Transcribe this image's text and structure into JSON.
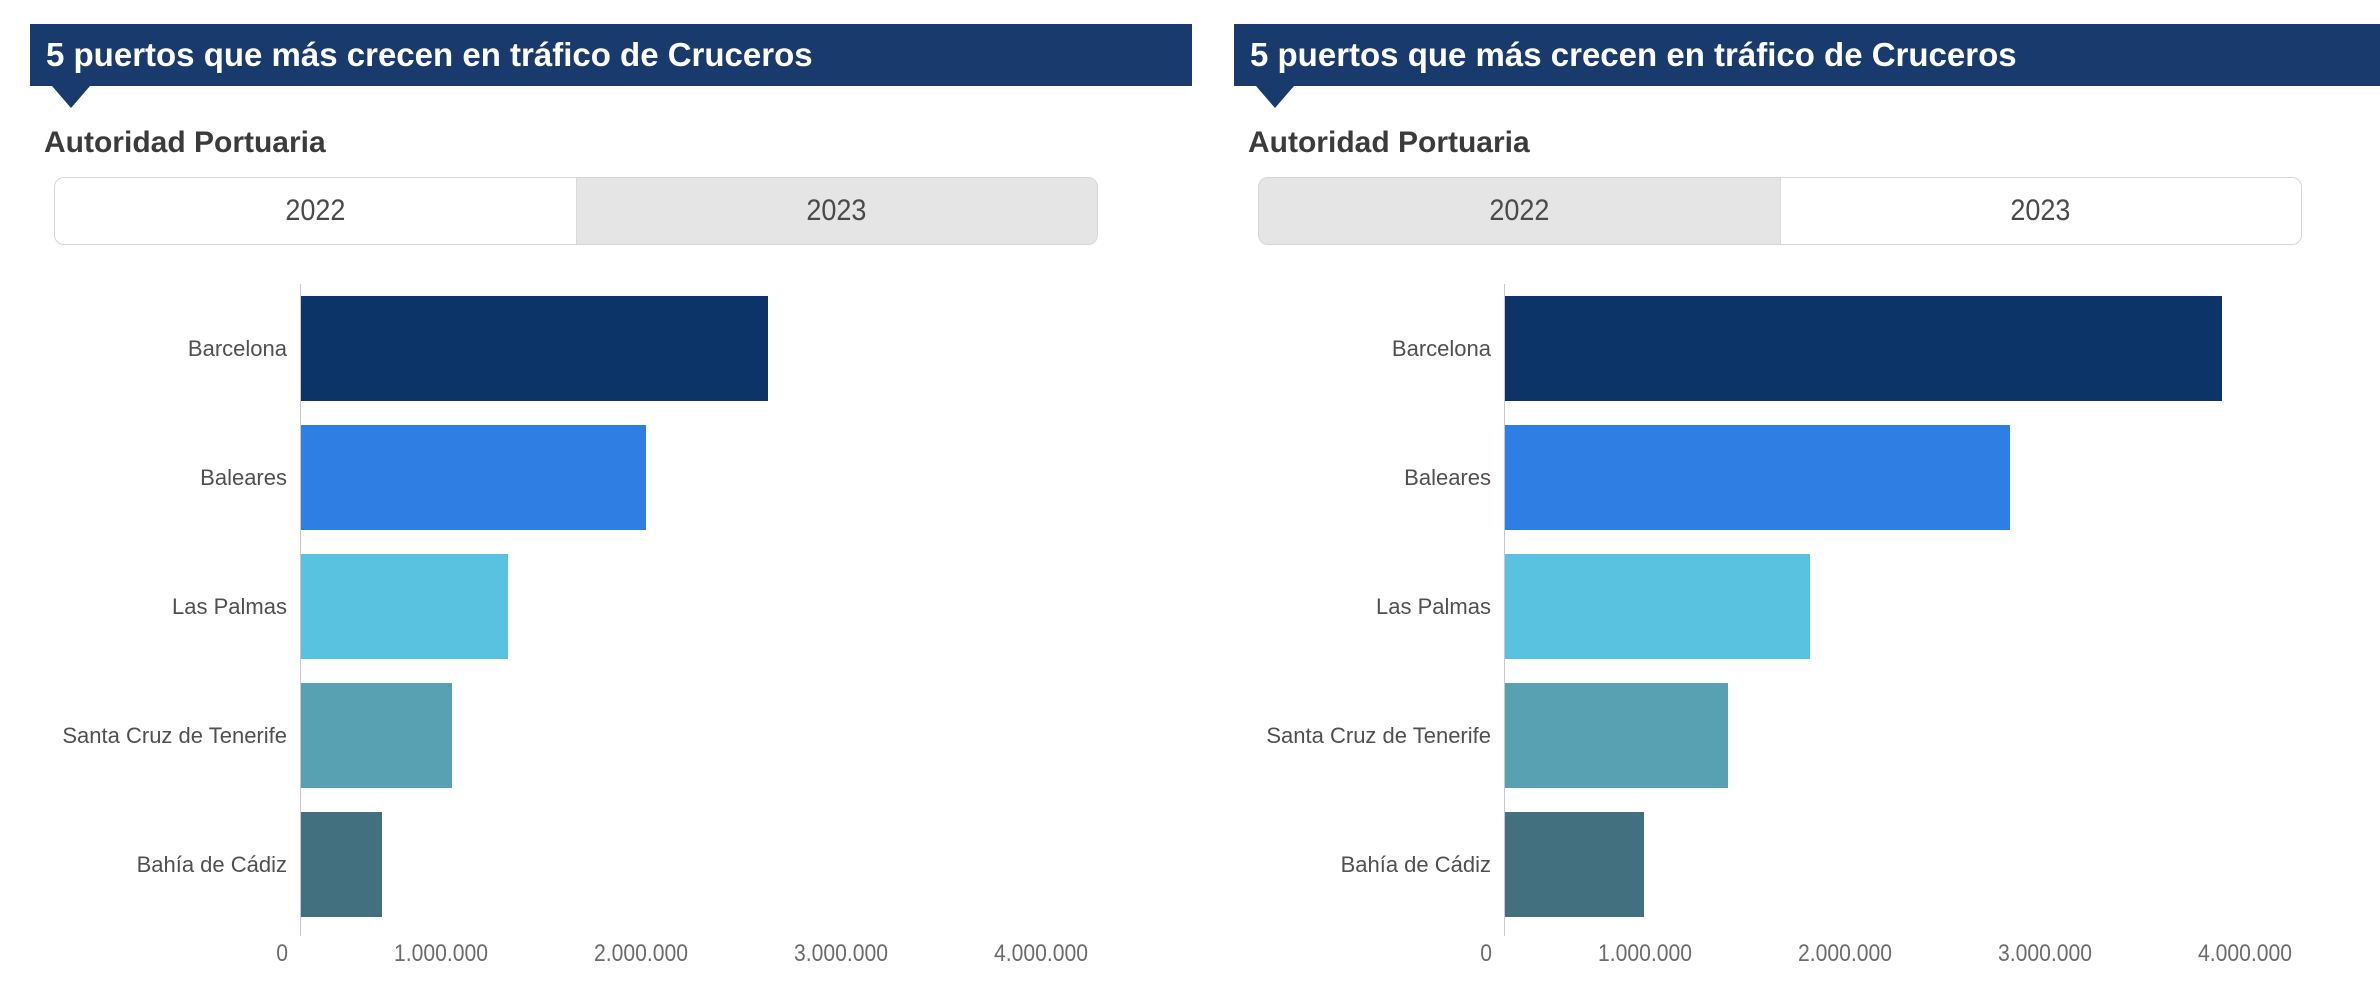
{
  "page": {
    "background": "#ffffff"
  },
  "colors": {
    "banner_bg": "#183a6d",
    "banner_text": "#ffffff",
    "tab_active_bg": "#ffffff",
    "tab_inactive_bg": "#e5e5e5",
    "tab_border": "#d5d5d5",
    "tab_text": "#4a4a4a",
    "subtitle_text": "#3b3b3b",
    "category_text": "#505050",
    "tick_text": "#6b6b6b",
    "axis_line": "#c9c9c9"
  },
  "panels": [
    {
      "banner_title": "5 puertos que más crecen en tráfico de Cruceros",
      "section_label": "Autoridad Portuaria",
      "selected_year": "2022",
      "tabs": [
        {
          "label": "2022",
          "active": true
        },
        {
          "label": "2023",
          "active": false
        }
      ]
    },
    {
      "banner_title": "5 puertos que más crecen en tráfico de Cruceros",
      "section_label": "Autoridad Portuaria",
      "selected_year": "2023",
      "tabs": [
        {
          "label": "2022",
          "active": false
        },
        {
          "label": "2023",
          "active": true
        }
      ]
    }
  ],
  "chart_data": [
    {
      "type": "bar",
      "orientation": "horizontal",
      "title": "5 puertos que más crecen en tráfico de Cruceros",
      "subtitle": "Autoridad Portuaria",
      "year": "2022",
      "categories": [
        "Barcelona",
        "Baleares",
        "Las Palmas",
        "Santa Cruz de Tenerife",
        "Bahía de Cádiz"
      ],
      "values": [
        2340000,
        1730000,
        1040000,
        760000,
        410000
      ],
      "bar_colors": [
        "#0c3468",
        "#2e7ee3",
        "#59c2e0",
        "#58a1b3",
        "#43707f"
      ],
      "xlabel": "",
      "ylabel": "Autoridad Portuaria",
      "xlim": [
        0,
        4150000
      ],
      "x_ticks": [
        0,
        1000000,
        2000000,
        3000000,
        4000000
      ],
      "x_tick_labels": [
        "0",
        "1.000.000",
        "2.000.000",
        "3.000.000",
        "4.000.000"
      ],
      "grid": false,
      "legend": false
    },
    {
      "type": "bar",
      "orientation": "horizontal",
      "title": "5 puertos que más crecen en tráfico de Cruceros",
      "subtitle": "Autoridad Portuaria",
      "year": "2023",
      "categories": [
        "Barcelona",
        "Baleares",
        "Las Palmas",
        "Santa Cruz de Tenerife",
        "Bahía de Cádiz"
      ],
      "values": [
        3590000,
        2530000,
        1530000,
        1120000,
        700000
      ],
      "bar_colors": [
        "#0c3468",
        "#2e7ee3",
        "#59c2e0",
        "#58a1b3",
        "#43707f"
      ],
      "xlabel": "",
      "ylabel": "Autoridad Portuaria",
      "xlim": [
        0,
        4150000
      ],
      "x_ticks": [
        0,
        1000000,
        2000000,
        3000000,
        4000000
      ],
      "x_tick_labels": [
        "0",
        "1.000.000",
        "2.000.000",
        "3.000.000",
        "4.000.000"
      ],
      "grid": false,
      "legend": false
    }
  ]
}
